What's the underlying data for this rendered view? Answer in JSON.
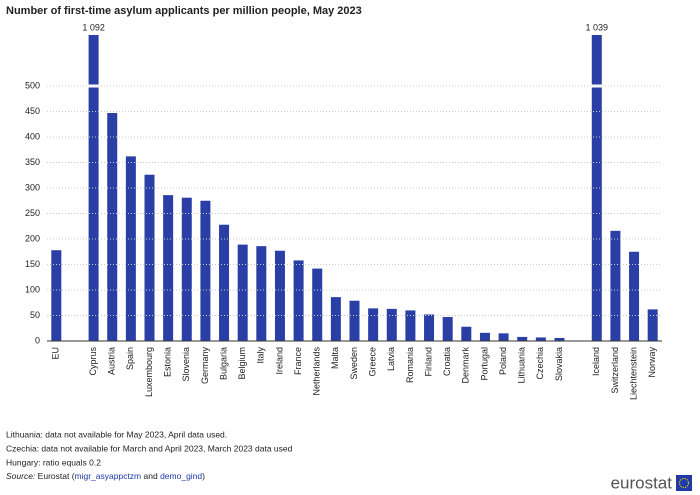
{
  "chart_data": {
    "type": "bar",
    "title": "Number of first-time asylum applicants per million people, May 2023",
    "categories": [
      "EU",
      null,
      "Cyprus",
      "Austria",
      "Spain",
      "Luxembourg",
      "Estonia",
      "Slovenia",
      "Germany",
      "Bulgaria",
      "Belgium",
      "Italy",
      "Ireland",
      "France",
      "Netherlands",
      "Malta",
      "Sweden",
      "Greece",
      "Latvia",
      "Romania",
      "Finland",
      "Croatia",
      "Denmark",
      "Portugal",
      "Poland",
      "Lithuania",
      "Czechia",
      "Slovakia",
      null,
      "Iceland",
      "Switzerland",
      "Liechtenstein",
      "Norway"
    ],
    "values": [
      178,
      null,
      1092,
      447,
      362,
      326,
      286,
      281,
      275,
      228,
      189,
      186,
      177,
      158,
      142,
      86,
      79,
      64,
      63,
      60,
      52,
      47,
      28,
      16,
      15,
      8,
      7,
      6,
      null,
      1039,
      216,
      175,
      62
    ],
    "value_labels": [
      null,
      null,
      "1 092",
      null,
      null,
      null,
      null,
      null,
      null,
      null,
      null,
      null,
      null,
      null,
      null,
      null,
      null,
      null,
      null,
      null,
      null,
      null,
      null,
      null,
      null,
      null,
      null,
      null,
      null,
      "1 039",
      null,
      null,
      null
    ],
    "color": "#2a3fa5",
    "ylim": [
      0,
      600
    ],
    "yticks": [
      0,
      50,
      100,
      150,
      200,
      250,
      300,
      350,
      400,
      450,
      500
    ],
    "grid": true,
    "axis_break": 500
  },
  "notes": [
    "Lithuania: data not available for May 2023, April data used.",
    "Czechia: data not available for March and April 2023, March 2023 data used",
    "Hungary: ratio equals 0.2"
  ],
  "source": {
    "label": "Source:",
    "text": "Eurostat (",
    "link1": "migr_asyappctzm",
    "and": "and",
    "link2": "demo_gind",
    "close": ")"
  },
  "logo": "eurostat"
}
